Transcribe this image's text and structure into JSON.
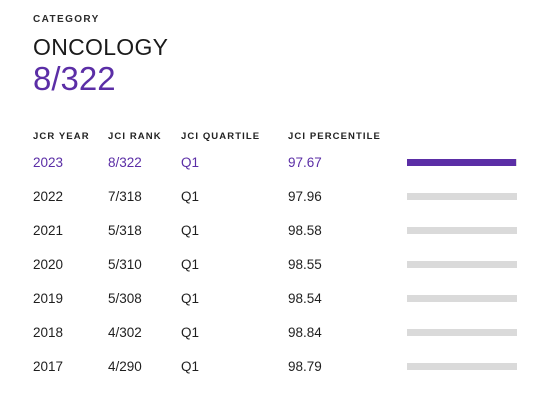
{
  "category": {
    "label": "CATEGORY",
    "name": "ONCOLOGY",
    "rank": "8/322"
  },
  "table": {
    "headers": {
      "year": "JCR YEAR",
      "rank": "JCI RANK",
      "quartile": "JCI QUARTILE",
      "percentile": "JCI PERCENTILE"
    },
    "rows": [
      {
        "year": "2023",
        "rank": "8/322",
        "quartile": "Q1",
        "percentile": "97.67",
        "current": true
      },
      {
        "year": "2022",
        "rank": "7/318",
        "quartile": "Q1",
        "percentile": "97.96",
        "current": false
      },
      {
        "year": "2021",
        "rank": "5/318",
        "quartile": "Q1",
        "percentile": "98.58",
        "current": false
      },
      {
        "year": "2020",
        "rank": "5/310",
        "quartile": "Q1",
        "percentile": "98.55",
        "current": false
      },
      {
        "year": "2019",
        "rank": "5/308",
        "quartile": "Q1",
        "percentile": "98.54",
        "current": false
      },
      {
        "year": "2018",
        "rank": "4/302",
        "quartile": "Q1",
        "percentile": "98.84",
        "current": false
      },
      {
        "year": "2017",
        "rank": "4/290",
        "quartile": "Q1",
        "percentile": "98.79",
        "current": false
      }
    ]
  },
  "colors": {
    "accent": "#5b2ea6",
    "bar_track": "#dadada",
    "text": "#1f1f1f"
  }
}
